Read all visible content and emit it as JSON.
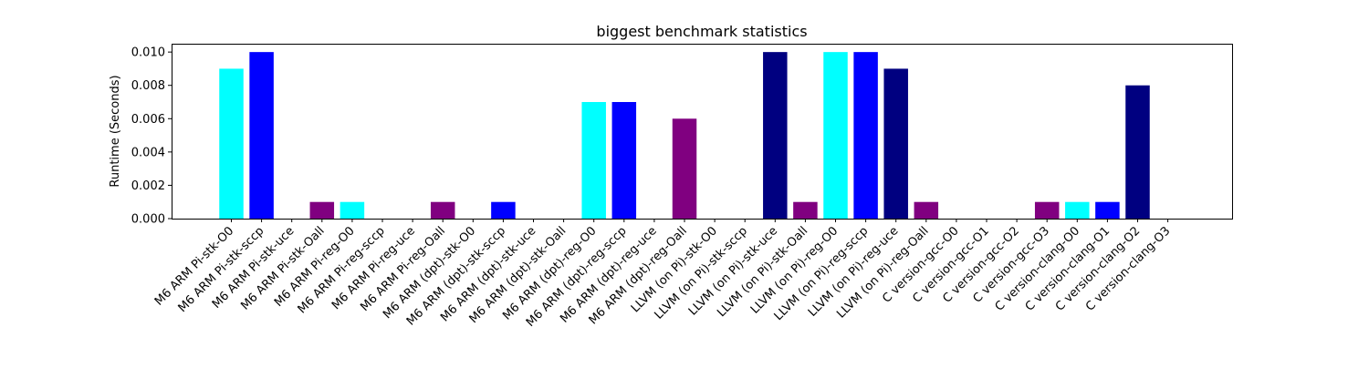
{
  "chart_data": {
    "type": "bar",
    "title": "biggest benchmark statistics",
    "xlabel": "",
    "ylabel": "Runtime (Seconds)",
    "ylim": [
      0,
      0.0105
    ],
    "yticks": [
      0.0,
      0.002,
      0.004,
      0.006,
      0.008,
      0.01
    ],
    "ytick_labels": [
      "0.000",
      "0.002",
      "0.004",
      "0.006",
      "0.008",
      "0.010"
    ],
    "grid": false,
    "categories": [
      "M6 ARM Pi-stk-O0",
      "M6 ARM Pi-stk-sccp",
      "M6 ARM Pi-stk-uce",
      "M6 ARM Pi-stk-Oall",
      "M6 ARM Pi-reg-O0",
      "M6 ARM Pi-reg-sccp",
      "M6 ARM Pi-reg-uce",
      "M6 ARM Pi-reg-Oall",
      "M6 ARM (dpt)-stk-O0",
      "M6 ARM (dpt)-stk-sccp",
      "M6 ARM (dpt)-stk-uce",
      "M6 ARM (dpt)-stk-Oall",
      "M6 ARM (dpt)-reg-O0",
      "M6 ARM (dpt)-reg-sccp",
      "M6 ARM (dpt)-reg-uce",
      "M6 ARM (dpt)-reg-Oall",
      "LLVM (on Pi)-stk-O0",
      "LLVM (on Pi)-stk-sccp",
      "LLVM (on Pi)-stk-uce",
      "LLVM (on Pi)-stk-Oall",
      "LLVM (on Pi)-reg-O0",
      "LLVM (on Pi)-reg-sccp",
      "LLVM (on Pi)-reg-uce",
      "LLVM (on Pi)-reg-Oall",
      "C version-gcc-O0",
      "C version-gcc-O1",
      "C version-gcc-O2",
      "C version-gcc-O3",
      "C version-clang-O0",
      "C version-clang-O1",
      "C version-clang-O2",
      "C version-clang-O3"
    ],
    "values": [
      0.009,
      0.01,
      0.0,
      0.001,
      0.001,
      0.0,
      0.0,
      0.001,
      0.0,
      0.001,
      0.0,
      0.0,
      0.007,
      0.007,
      0.0,
      0.006,
      0.0,
      0.0,
      0.01,
      0.001,
      0.01,
      0.01,
      0.009,
      0.001,
      0.0,
      0.0,
      0.0,
      0.001,
      0.001,
      0.001,
      0.008,
      0.0
    ],
    "colors": [
      "#00ffff",
      "#0000ff",
      "#000080",
      "#800080",
      "#00ffff",
      "#0000ff",
      "#000080",
      "#800080",
      "#00ffff",
      "#0000ff",
      "#000080",
      "#800080",
      "#00ffff",
      "#0000ff",
      "#000080",
      "#800080",
      "#00ffff",
      "#0000ff",
      "#000080",
      "#800080",
      "#00ffff",
      "#0000ff",
      "#000080",
      "#800080",
      "#00ffff",
      "#0000ff",
      "#000080",
      "#800080",
      "#00ffff",
      "#0000ff",
      "#000080",
      "#800080"
    ]
  }
}
